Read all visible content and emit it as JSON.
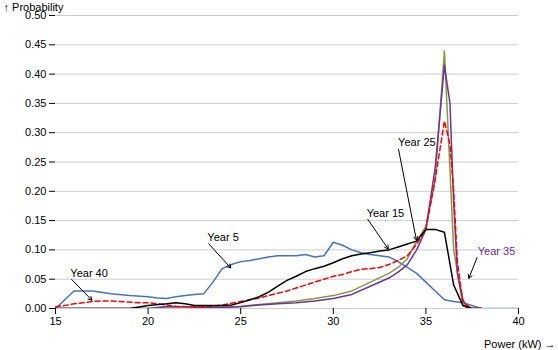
{
  "chart_data": {
    "type": "line",
    "title": "",
    "xlabel": "Power (kW)",
    "ylabel": "Probability",
    "xlim": [
      15,
      40
    ],
    "ylim": [
      0,
      0.5
    ],
    "xticks": [
      15,
      20,
      25,
      30,
      35,
      40
    ],
    "yticks": [
      {
        "value": 0,
        "label": "0.00"
      },
      0.05,
      {
        "value": 0.1,
        "label": "0.10"
      },
      0.15,
      {
        "value": 0.2,
        "label": "0.20"
      },
      0.25,
      {
        "value": 0.3,
        "label": "0.30"
      },
      0.35,
      {
        "value": 0.4,
        "label": "0.40"
      },
      0.45,
      {
        "value": 0.5,
        "label": "0.50"
      }
    ],
    "grid": "y",
    "series": [
      {
        "name": "Year 5",
        "color": "#4472C4",
        "line_style": "solid",
        "x": [
          15.0,
          16.0,
          17.0,
          18.0,
          19.0,
          20.0,
          20.5,
          21.0,
          21.5,
          22.0,
          22.5,
          23.0,
          23.5,
          24.0,
          24.5,
          25.0,
          25.5,
          26.0,
          26.5,
          27.0,
          27.5,
          28.0,
          28.5,
          29.0,
          29.5,
          30.0,
          30.5,
          31.0,
          31.5,
          32.0,
          32.5,
          33.0,
          33.5,
          34.0,
          34.5,
          35.0,
          35.5,
          36.0,
          36.5,
          37.0,
          38.0,
          39.0,
          40.0
        ],
        "values": [
          0.0,
          0.03,
          0.03,
          0.025,
          0.022,
          0.02,
          0.018,
          0.017,
          0.02,
          0.022,
          0.024,
          0.025,
          0.045,
          0.068,
          0.075,
          0.08,
          0.082,
          0.085,
          0.088,
          0.09,
          0.09,
          0.09,
          0.092,
          0.088,
          0.09,
          0.113,
          0.108,
          0.1,
          0.095,
          0.092,
          0.09,
          0.088,
          0.08,
          0.07,
          0.06,
          0.045,
          0.03,
          0.015,
          0.012,
          0.01,
          0.0,
          0.0,
          0.0
        ]
      },
      {
        "name": "Year 25",
        "color": "#7F9E3B",
        "line_style": "solid",
        "x": [
          15.0,
          20.0,
          21.0,
          22.0,
          23.0,
          23.5,
          24.0,
          25.0,
          26.0,
          27.0,
          28.0,
          29.0,
          30.0,
          31.0,
          32.0,
          33.0,
          33.5,
          34.0,
          34.5,
          35.0,
          35.5,
          36.0,
          36.5,
          37.0,
          37.2,
          37.5,
          38.0
        ],
        "values": [
          0.0,
          0.0,
          0.003,
          0.003,
          0.002,
          0.002,
          0.002,
          0.004,
          0.007,
          0.01,
          0.013,
          0.017,
          0.022,
          0.03,
          0.045,
          0.06,
          0.07,
          0.085,
          0.115,
          0.14,
          0.22,
          0.44,
          0.1,
          0.005,
          0.002,
          0.0,
          0.0
        ]
      },
      {
        "name": "Year 35",
        "color": "#7030A0",
        "line_style": "solid",
        "x": [
          15.0,
          20.0,
          21.0,
          22.0,
          23.0,
          23.5,
          24.0,
          25.0,
          26.0,
          27.0,
          28.0,
          29.0,
          30.0,
          31.0,
          32.0,
          33.0,
          33.5,
          34.0,
          34.5,
          35.0,
          35.5,
          36.0,
          36.3,
          36.5,
          36.7,
          37.0,
          37.2,
          37.5,
          38.0
        ],
        "values": [
          0.0,
          0.0,
          0.003,
          0.003,
          0.002,
          0.002,
          0.002,
          0.003,
          0.006,
          0.008,
          0.01,
          0.013,
          0.017,
          0.024,
          0.038,
          0.052,
          0.062,
          0.075,
          0.1,
          0.135,
          0.24,
          0.415,
          0.35,
          0.18,
          0.06,
          0.015,
          0.003,
          0.0,
          0.0
        ]
      },
      {
        "name": "Year 40",
        "color": "#FF0000",
        "line_style": "dashed",
        "x": [
          15.0,
          15.5,
          16.0,
          16.5,
          17.0,
          17.5,
          18.0,
          18.5,
          19.0,
          19.5,
          20.0,
          20.5,
          21.0,
          21.5,
          22.0,
          22.5,
          23.0,
          23.5,
          24.0,
          24.5,
          25.0,
          25.5,
          26.0,
          26.5,
          27.0,
          27.5,
          28.0,
          28.5,
          29.0,
          29.5,
          30.0,
          30.5,
          31.0,
          31.5,
          32.0,
          32.5,
          33.0,
          33.5,
          34.0,
          34.5,
          35.0,
          35.5,
          36.0,
          36.3,
          36.5,
          36.7,
          37.0,
          37.5,
          38.0
        ],
        "values": [
          0.003,
          0.005,
          0.008,
          0.01,
          0.012,
          0.013,
          0.013,
          0.012,
          0.011,
          0.01,
          0.01,
          0.008,
          0.006,
          0.004,
          0.003,
          0.003,
          0.003,
          0.004,
          0.006,
          0.009,
          0.012,
          0.015,
          0.018,
          0.022,
          0.026,
          0.03,
          0.035,
          0.04,
          0.045,
          0.05,
          0.055,
          0.058,
          0.063,
          0.067,
          0.068,
          0.07,
          0.075,
          0.082,
          0.09,
          0.11,
          0.135,
          0.22,
          0.32,
          0.28,
          0.2,
          0.08,
          0.01,
          0.0,
          0.0
        ]
      },
      {
        "name": "Year 15",
        "color": "#000000",
        "line_style": "solid",
        "x": [
          15.0,
          16.0,
          17.0,
          18.0,
          19.0,
          20.0,
          21.0,
          21.5,
          22.0,
          22.5,
          23.0,
          23.5,
          24.0,
          24.5,
          25.0,
          25.5,
          26.0,
          26.5,
          27.0,
          27.5,
          28.0,
          28.5,
          29.0,
          29.5,
          30.0,
          30.5,
          31.0,
          31.5,
          32.0,
          32.5,
          33.0,
          33.5,
          34.0,
          34.5,
          35.0,
          35.5,
          36.0,
          36.5,
          37.0,
          37.5,
          38.0
        ],
        "values": [
          0.0,
          0.0,
          0.0,
          0.0,
          0.0,
          0.005,
          0.008,
          0.01,
          0.008,
          0.005,
          0.005,
          0.005,
          0.005,
          0.006,
          0.01,
          0.015,
          0.02,
          0.028,
          0.038,
          0.048,
          0.055,
          0.063,
          0.068,
          0.072,
          0.078,
          0.085,
          0.09,
          0.093,
          0.095,
          0.098,
          0.1,
          0.105,
          0.11,
          0.115,
          0.135,
          0.135,
          0.13,
          0.04,
          0.005,
          0.0,
          0.0
        ]
      }
    ],
    "annotations": [
      {
        "text": "Year 40",
        "x": 17.0,
        "y": 0.013,
        "text_x": 15.8,
        "text_y": 0.052,
        "color": "#000000"
      },
      {
        "text": "Year 5",
        "x": 24.5,
        "y": 0.068,
        "text_x": 23.2,
        "text_y": 0.113,
        "color": "#000000"
      },
      {
        "text": "Year 15",
        "x": 33.0,
        "y": 0.1,
        "text_x": 31.8,
        "text_y": 0.155,
        "color": "#000000"
      },
      {
        "text": "Year 25",
        "x": 34.5,
        "y": 0.115,
        "text_x": 33.5,
        "text_y": 0.275,
        "color": "#000000"
      },
      {
        "text": "Year 35",
        "x": 37.3,
        "y": 0.05,
        "text_x": 37.8,
        "text_y": 0.09,
        "color": "#7030A0"
      }
    ]
  }
}
